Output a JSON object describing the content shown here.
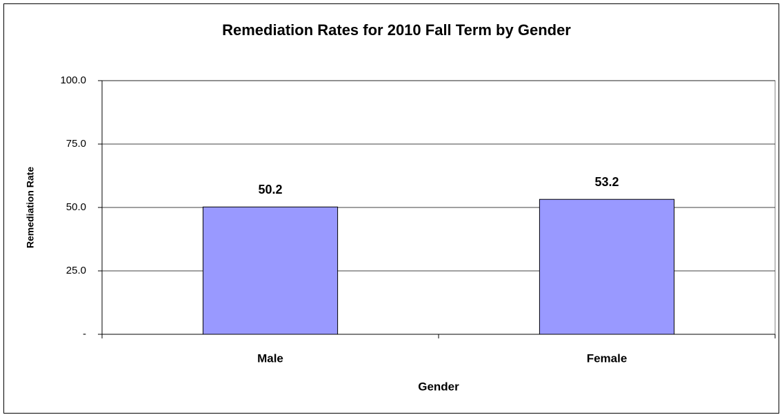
{
  "chart_data": {
    "type": "bar",
    "title": "Remediation Rates for 2010 Fall Term by Gender",
    "x_label": "Gender",
    "y_label": "Remediation Rate",
    "categories": [
      "Male",
      "Female"
    ],
    "values": [
      50.2,
      53.2
    ],
    "color": "#9999ff",
    "ylim": [
      0,
      100
    ],
    "yticks": [
      {
        "value": 0,
        "label": "-"
      },
      {
        "value": 25,
        "label": "25.0"
      },
      {
        "value": 50,
        "label": "50.0"
      },
      {
        "value": 75,
        "label": "75.0"
      },
      {
        "value": 100,
        "label": "100.0"
      }
    ],
    "grid": true
  }
}
